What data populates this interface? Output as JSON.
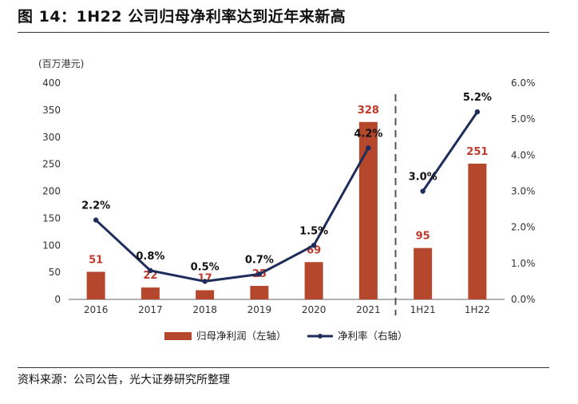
{
  "figure": {
    "title": "图 14：1H22 公司归母净利率达到近年来新高",
    "source": "资料来源：公司公告，光大证券研究所整理"
  },
  "chart_data": {
    "type": "bar",
    "categories": [
      "2016",
      "2017",
      "2018",
      "2019",
      "2020",
      "2021",
      "1H21",
      "1H22"
    ],
    "series": [
      {
        "name": "归母净利润（左轴）",
        "type": "bar",
        "axis": "left",
        "color": "#b5472d",
        "values": [
          51,
          22,
          17,
          25,
          69,
          328,
          95,
          251
        ],
        "labels": [
          "51",
          "22",
          "17",
          "25",
          "69",
          "328",
          "95",
          "251"
        ]
      },
      {
        "name": "净利率（右轴）",
        "type": "line",
        "axis": "right",
        "color": "#1f2d5c",
        "values": [
          2.2,
          0.8,
          0.5,
          0.7,
          1.5,
          4.2,
          3.0,
          5.2
        ],
        "labels": [
          "2.2%",
          "0.8%",
          "0.5%",
          "0.7%",
          "1.5%",
          "4.2%",
          "3.0%",
          "5.2%"
        ],
        "segments": [
          [
            0,
            5
          ],
          [
            6,
            7
          ]
        ]
      }
    ],
    "ylabel": "(百万港元)",
    "ylim": [
      0,
      400
    ],
    "yticks": [
      "0",
      "50",
      "100",
      "150",
      "200",
      "250",
      "300",
      "350",
      "400"
    ],
    "y2lim": [
      0,
      6
    ],
    "y2ticks": [
      "0.0%",
      "1.0%",
      "2.0%",
      "3.0%",
      "4.0%",
      "5.0%",
      "6.0%"
    ],
    "divider_after_index": 5,
    "legend_position": "bottom",
    "grid": false
  }
}
